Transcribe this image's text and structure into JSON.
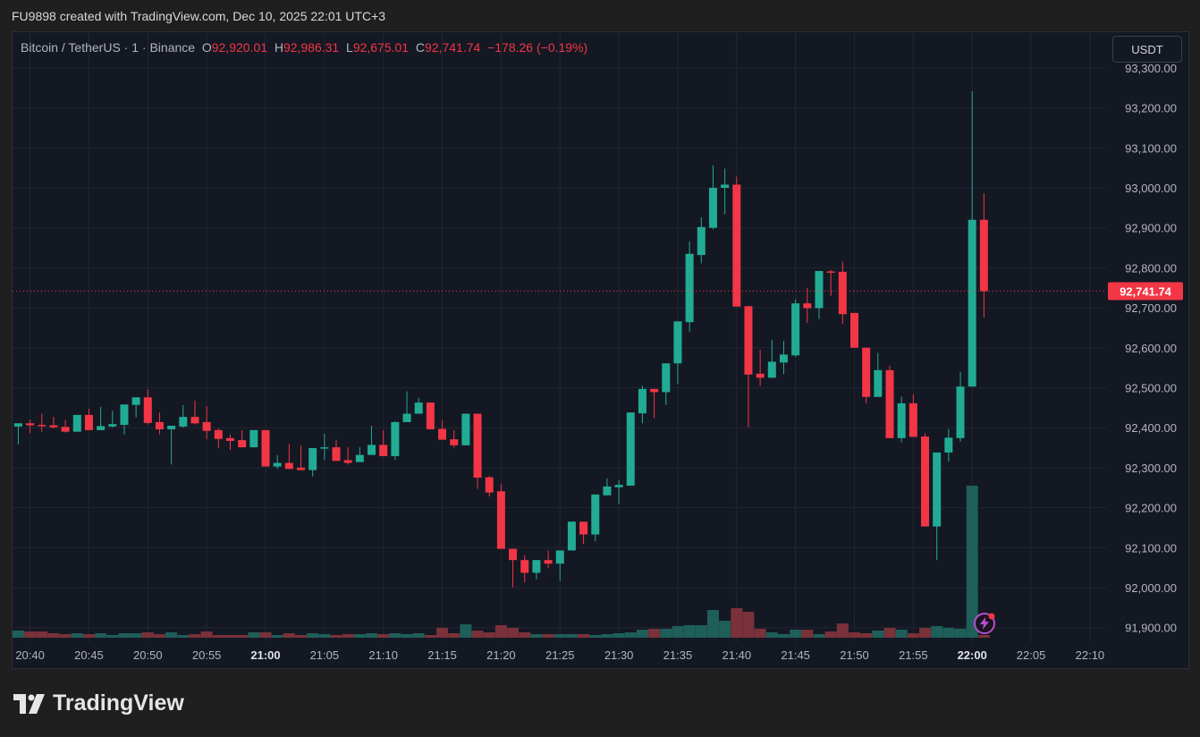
{
  "caption": "FU9898 created with TradingView.com, Dec 10, 2025 22:01 UTC+3",
  "legend": {
    "symbol": "Bitcoin / TetherUS · 1 · Binance",
    "o_label": "O",
    "o": "92,920.01",
    "h_label": "H",
    "h": "92,986.31",
    "l_label": "L",
    "l": "92,675.01",
    "c_label": "C",
    "c": "92,741.74",
    "change": "−178.26 (−0.19%)"
  },
  "currency_button": "USDT",
  "logo_text": "TradingView",
  "lightning_icon": "lightning-icon",
  "colors": {
    "up": "#22ab94",
    "down": "#f23645",
    "up_volume": "#1e5f59",
    "down_volume": "#7a3139",
    "background": "#141823",
    "grid": "#222633"
  },
  "chart_data": {
    "type": "candlestick",
    "title": "",
    "interval_minutes": 1,
    "ylim": [
      91880,
      93320
    ],
    "price_ticks": [
      "91,900.00",
      "92,000.00",
      "92,100.00",
      "92,200.00",
      "92,300.00",
      "92,400.00",
      "92,500.00",
      "92,600.00",
      "92,700.00",
      "92,800.00",
      "92,900.00",
      "93,000.00",
      "93,100.00",
      "93,200.00",
      "93,300.00"
    ],
    "time_ticks": [
      "20:40",
      "20:45",
      "20:50",
      "20:55",
      "21:00",
      "21:05",
      "21:10",
      "21:15",
      "21:20",
      "21:25",
      "21:30",
      "21:35",
      "21:40",
      "21:45",
      "21:50",
      "21:55",
      "22:00",
      "22:05",
      "22:10"
    ],
    "bold_time_ticks": [
      "21:00",
      "22:00"
    ],
    "last_price": "92,741.74",
    "grid": true,
    "columns": [
      "time",
      "open",
      "high",
      "low",
      "close",
      "volume_relative"
    ],
    "candles": [
      [
        "20:39",
        92403,
        92411,
        92358,
        92411,
        8
      ],
      [
        "20:40",
        92411,
        92420,
        92386,
        92406,
        7
      ],
      [
        "20:41",
        92407,
        92435,
        92390,
        92406,
        7
      ],
      [
        "20:42",
        92406,
        92427,
        92398,
        92401,
        5
      ],
      [
        "20:43",
        92402,
        92420,
        92388,
        92390,
        4
      ],
      [
        "20:44",
        92390,
        92432,
        92390,
        92432,
        5
      ],
      [
        "20:45",
        92432,
        92448,
        92394,
        92394,
        4
      ],
      [
        "20:46",
        92394,
        92452,
        92394,
        92404,
        5
      ],
      [
        "20:47",
        92403,
        92443,
        92400,
        92409,
        3
      ],
      [
        "20:48",
        92407,
        92458,
        92383,
        92458,
        5
      ],
      [
        "20:49",
        92457,
        92476,
        92426,
        92476,
        5
      ],
      [
        "20:50",
        92476,
        92496,
        92408,
        92412,
        6
      ],
      [
        "20:51",
        92414,
        92438,
        92383,
        92396,
        4
      ],
      [
        "20:52",
        92396,
        92405,
        92308,
        92405,
        6
      ],
      [
        "20:53",
        92403,
        92457,
        92400,
        92427,
        3
      ],
      [
        "20:54",
        92427,
        92468,
        92408,
        92411,
        4
      ],
      [
        "20:55",
        92414,
        92454,
        92371,
        92392,
        7
      ],
      [
        "20:56",
        92394,
        92398,
        92349,
        92372,
        3
      ],
      [
        "20:57",
        92374,
        92383,
        92344,
        92367,
        3
      ],
      [
        "20:58",
        92369,
        92394,
        92351,
        92351,
        3
      ],
      [
        "20:59",
        92351,
        92394,
        92351,
        92394,
        6
      ],
      [
        "21:00",
        92394,
        92394,
        92303,
        92303,
        6
      ],
      [
        "21:01",
        92303,
        92331,
        92297,
        92312,
        3
      ],
      [
        "21:02",
        92312,
        92360,
        92296,
        92297,
        5
      ],
      [
        "21:03",
        92300,
        92355,
        92294,
        92294,
        3
      ],
      [
        "21:04",
        92294,
        92349,
        92278,
        92349,
        5
      ],
      [
        "21:05",
        92349,
        92385,
        92320,
        92351,
        4
      ],
      [
        "21:06",
        92351,
        92370,
        92317,
        92317,
        3
      ],
      [
        "21:07",
        92319,
        92351,
        92308,
        92312,
        4
      ],
      [
        "21:08",
        92314,
        92351,
        92314,
        92332,
        4
      ],
      [
        "21:09",
        92332,
        92405,
        92332,
        92357,
        5
      ],
      [
        "21:10",
        92357,
        92394,
        92329,
        92329,
        4
      ],
      [
        "21:11",
        92329,
        92416,
        92319,
        92414,
        5
      ],
      [
        "21:12",
        92414,
        92491,
        92414,
        92435,
        4
      ],
      [
        "21:13",
        92435,
        92474,
        92435,
        92463,
        5
      ],
      [
        "21:14",
        92463,
        92463,
        92396,
        92396,
        3
      ],
      [
        "21:15",
        92397,
        92418,
        92370,
        92370,
        11
      ],
      [
        "21:16",
        92371,
        92394,
        92350,
        92356,
        5
      ],
      [
        "21:17",
        92356,
        92435,
        92356,
        92435,
        15
      ],
      [
        "21:18",
        92435,
        92435,
        92247,
        92275,
        8
      ],
      [
        "21:19",
        92276,
        92279,
        92228,
        92238,
        6
      ],
      [
        "21:20",
        92241,
        92259,
        92097,
        92097,
        14
      ],
      [
        "21:21",
        92097,
        92097,
        92001,
        92069,
        11
      ],
      [
        "21:22",
        92069,
        92081,
        92013,
        92037,
        6
      ],
      [
        "21:23",
        92037,
        92069,
        92021,
        92069,
        4
      ],
      [
        "21:24",
        92069,
        92093,
        92049,
        92060,
        4
      ],
      [
        "21:25",
        92060,
        92093,
        92017,
        92093,
        4
      ],
      [
        "21:26",
        92093,
        92165,
        92093,
        92165,
        4
      ],
      [
        "21:27",
        92165,
        92165,
        92109,
        92133,
        4
      ],
      [
        "21:28",
        92133,
        92233,
        92116,
        92233,
        3
      ],
      [
        "21:29",
        92231,
        92273,
        92231,
        92253,
        4
      ],
      [
        "21:30",
        92251,
        92269,
        92209,
        92257,
        5
      ],
      [
        "21:31",
        92255,
        92438,
        92255,
        92438,
        6
      ],
      [
        "21:32",
        92436,
        92505,
        92411,
        92497,
        9
      ],
      [
        "21:33",
        92497,
        92497,
        92424,
        92489,
        10
      ],
      [
        "21:34",
        92489,
        92561,
        92457,
        92561,
        10
      ],
      [
        "21:35",
        92561,
        92666,
        92509,
        92666,
        13
      ],
      [
        "21:36",
        92664,
        92866,
        92640,
        92835,
        14
      ],
      [
        "21:37",
        92832,
        92926,
        92811,
        92902,
        14
      ],
      [
        "21:38",
        92900,
        93056,
        92896,
        93000,
        31
      ],
      [
        "21:39",
        93000,
        93048,
        92934,
        93008,
        19
      ],
      [
        "21:40",
        93008,
        93028,
        92703,
        92703,
        33
      ],
      [
        "21:41",
        92704,
        92704,
        92401,
        92533,
        29
      ],
      [
        "21:42",
        92535,
        92595,
        92505,
        92525,
        10
      ],
      [
        "21:43",
        92525,
        92620,
        92525,
        92565,
        6
      ],
      [
        "21:44",
        92563,
        92617,
        92534,
        92583,
        4
      ],
      [
        "21:45",
        92581,
        92721,
        92577,
        92711,
        9
      ],
      [
        "21:46",
        92711,
        92750,
        92662,
        92699,
        9
      ],
      [
        "21:47",
        92699,
        92792,
        92672,
        92792,
        4
      ],
      [
        "21:48",
        92791,
        92795,
        92730,
        92790,
        7
      ],
      [
        "21:49",
        92790,
        92815,
        92660,
        92684,
        16
      ],
      [
        "21:50",
        92687,
        92687,
        92600,
        92600,
        6
      ],
      [
        "21:51",
        92600,
        92600,
        92461,
        92477,
        5
      ],
      [
        "21:52",
        92477,
        92587,
        92477,
        92544,
        8
      ],
      [
        "21:53",
        92544,
        92555,
        92374,
        92374,
        11
      ],
      [
        "21:54",
        92374,
        92478,
        92363,
        92461,
        9
      ],
      [
        "21:55",
        92461,
        92483,
        92377,
        92377,
        5
      ],
      [
        "21:56",
        92378,
        92386,
        92153,
        92153,
        11
      ],
      [
        "21:57",
        92153,
        92338,
        92069,
        92338,
        13
      ],
      [
        "21:58",
        92338,
        92397,
        92315,
        92375,
        11
      ],
      [
        "21:59",
        92374,
        92540,
        92365,
        92503,
        10
      ],
      [
        "22:00",
        92503,
        93242,
        92503,
        92920,
        170
      ],
      [
        "22:01",
        92920.01,
        92986.31,
        92675.01,
        92741.74,
        3
      ]
    ]
  }
}
